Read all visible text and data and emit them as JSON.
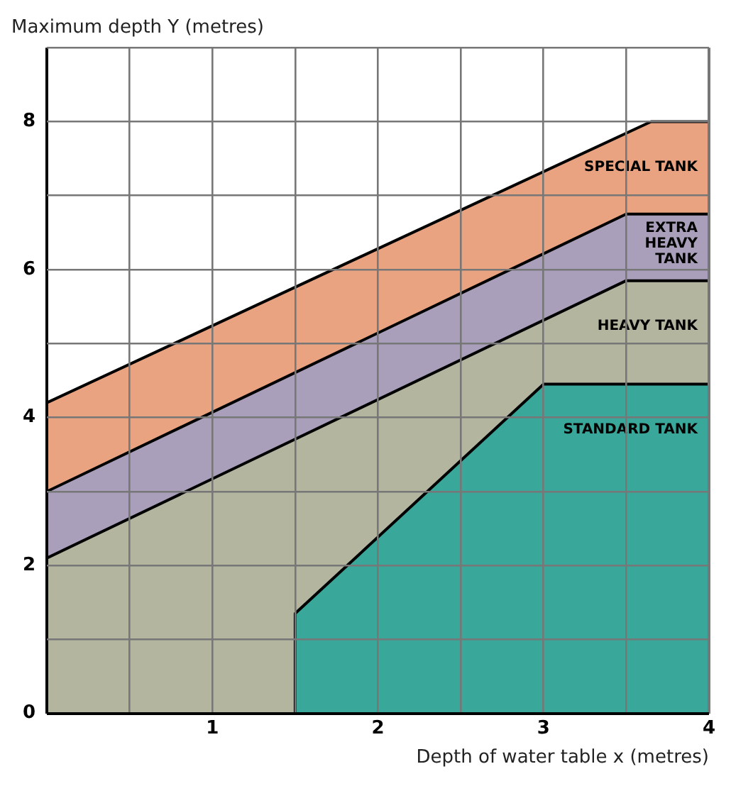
{
  "chart_data": {
    "type": "area",
    "xlabel": "Depth of water table x (metres)",
    "ylabel": "Maximum depth Y (metres)",
    "xlim": [
      0,
      4
    ],
    "xticks": [
      {
        "value": 0,
        "label": null
      },
      {
        "value": 0.5,
        "label": null
      },
      1,
      {
        "value": 1.5,
        "label": null
      },
      2,
      {
        "value": 2.5,
        "label": null
      },
      3,
      {
        "value": 3.5,
        "label": null
      },
      4
    ],
    "ylim": [
      0,
      9
    ],
    "yticks": [
      0,
      {
        "value": 1,
        "label": null
      },
      2,
      {
        "value": 3,
        "label": null
      },
      4,
      {
        "value": 5,
        "label": null
      },
      6,
      {
        "value": 7,
        "label": null
      },
      8,
      {
        "value": 9,
        "label": null
      }
    ],
    "grid": true,
    "legend": false,
    "series": [
      {
        "name": "SPECIAL TANK",
        "color": "#e9a380",
        "x": [
          0,
          3.65,
          4
        ],
        "values": [
          4.2,
          8,
          8
        ]
      },
      {
        "name": "EXTRA HEAVY TANK",
        "color": "#a99fbb",
        "x": [
          0,
          3.5,
          4
        ],
        "values": [
          3,
          6.75,
          6.75
        ]
      },
      {
        "name": "HEAVY TANK",
        "color": "#b3b59f",
        "x": [
          0,
          3.5,
          4
        ],
        "values": [
          2.1,
          5.85,
          5.85
        ]
      },
      {
        "name": "STANDARD TANK",
        "color": "#3aa79b",
        "x": [
          1.5,
          1.5,
          3,
          4
        ],
        "values": [
          0,
          1.35,
          4.45,
          4.45
        ]
      }
    ]
  }
}
